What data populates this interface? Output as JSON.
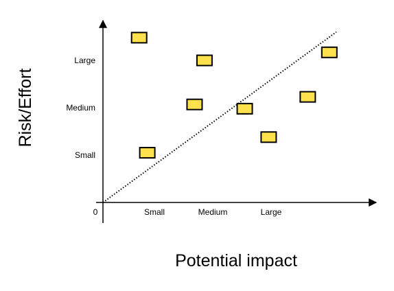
{
  "chart_data": {
    "type": "scatter",
    "xlabel": "Potential impact",
    "ylabel": "Risk/Effort",
    "origin_label": "0",
    "x_ticks": [
      {
        "label": "Small",
        "value": 1
      },
      {
        "label": "Medium",
        "value": 2
      },
      {
        "label": "Large",
        "value": 3
      }
    ],
    "y_ticks": [
      {
        "label": "Small",
        "value": 1
      },
      {
        "label": "Medium",
        "value": 2
      },
      {
        "label": "Large",
        "value": 3
      }
    ],
    "xlim": [
      0,
      4
    ],
    "ylim": [
      0,
      4
    ],
    "grid": false,
    "legend": "none",
    "marker_shape": "rectangle",
    "marker_color": "#ffe14d",
    "marker_edge_color": "#000000",
    "points": [
      {
        "x": 0.62,
        "y": 3.48
      },
      {
        "x": 1.74,
        "y": 3.0
      },
      {
        "x": 1.57,
        "y": 2.07
      },
      {
        "x": 2.43,
        "y": 1.98
      },
      {
        "x": 2.84,
        "y": 1.38
      },
      {
        "x": 3.51,
        "y": 2.23
      },
      {
        "x": 3.88,
        "y": 3.17
      },
      {
        "x": 0.76,
        "y": 1.05
      }
    ],
    "reference_line": {
      "style": "dotted",
      "from": [
        0,
        0
      ],
      "to": [
        4.0,
        3.6
      ]
    }
  }
}
